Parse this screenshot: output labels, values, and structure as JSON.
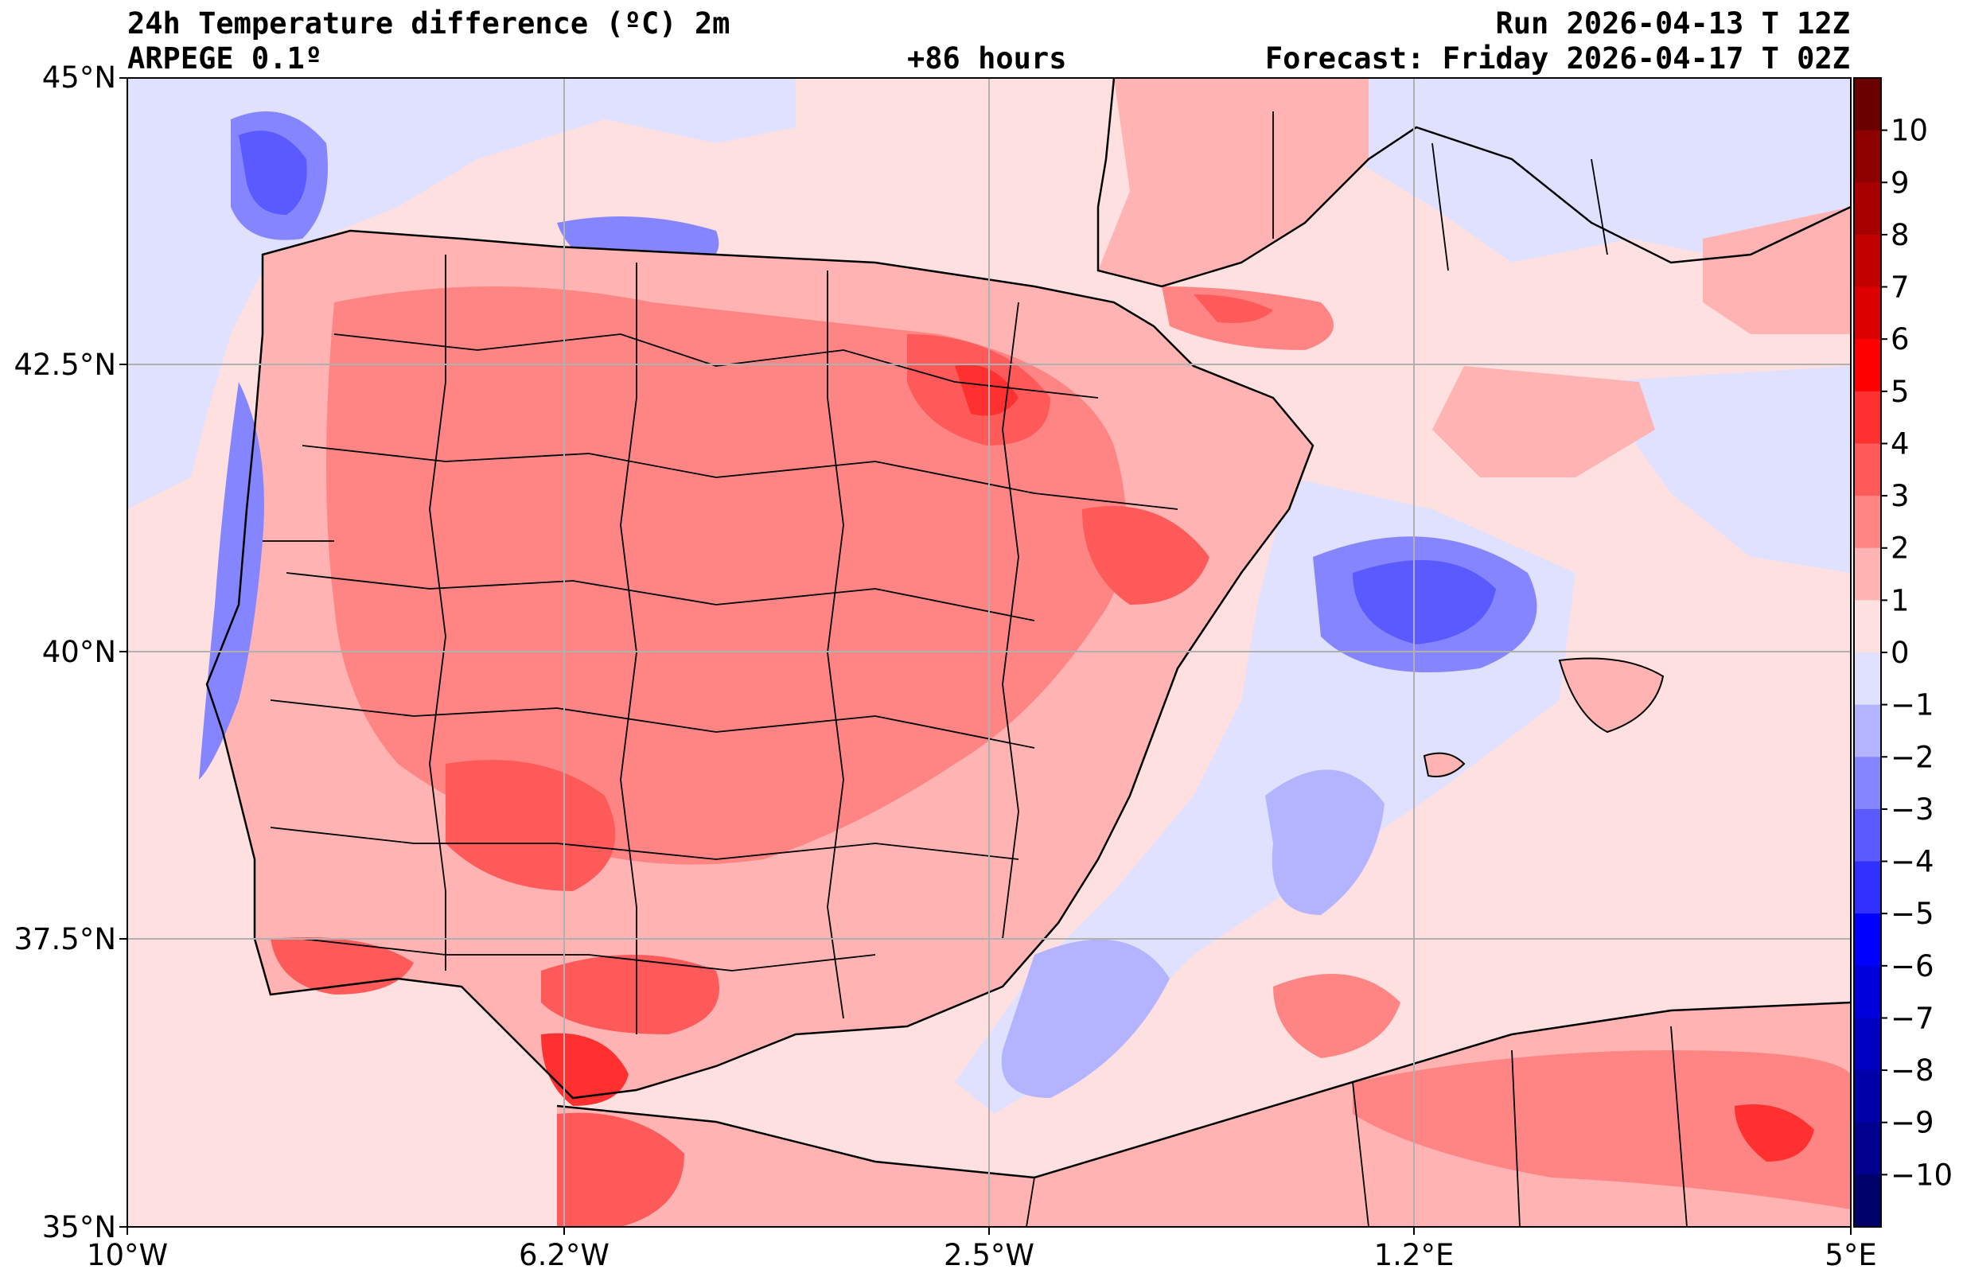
{
  "header": {
    "title": "24h Temperature difference (ºC) 2m",
    "model": "ARPEGE 0.1º",
    "lead_time": "+86 hours",
    "run": "Run 2026-04-13 T 12Z",
    "forecast": "Forecast: Friday 2026-04-17 T 02Z"
  },
  "axes": {
    "lat_labels": [
      "45°N",
      "42.5°N",
      "40°N",
      "37.5°N",
      "35°N"
    ],
    "lon_labels": [
      "10°W",
      "6.2°W",
      "2.5°W",
      "1.2°E",
      "5°E"
    ]
  },
  "colorbar": {
    "labels": [
      "10",
      "9",
      "8",
      "7",
      "6",
      "5",
      "4",
      "3",
      "2",
      "1",
      "0",
      "−1",
      "−2",
      "−3",
      "−4",
      "−5",
      "−6",
      "−7",
      "−8",
      "−9",
      "−10"
    ],
    "colors": [
      "#6b0000",
      "#8c0000",
      "#a80000",
      "#c20000",
      "#dd0000",
      "#ff0000",
      "#ff3030",
      "#ff5a5a",
      "#ff8585",
      "#ffb3b3",
      "#ffe0e0",
      "#e0e0ff",
      "#b3b3ff",
      "#8585ff",
      "#5a5aff",
      "#3030ff",
      "#0000ff",
      "#0000dd",
      "#0000c2",
      "#0000a8",
      "#00008c",
      "#00006b"
    ]
  },
  "colors": {
    "land_warm": "#ffb3b3",
    "warm": "#ff8585",
    "hot": "#ff5a5a",
    "hotter": "#ff3030",
    "slight_warm": "#ffe0e0",
    "slight_cool": "#e0e0ff",
    "cool": "#b3b3ff",
    "cooler": "#8585ff",
    "cold": "#5a5aff"
  }
}
